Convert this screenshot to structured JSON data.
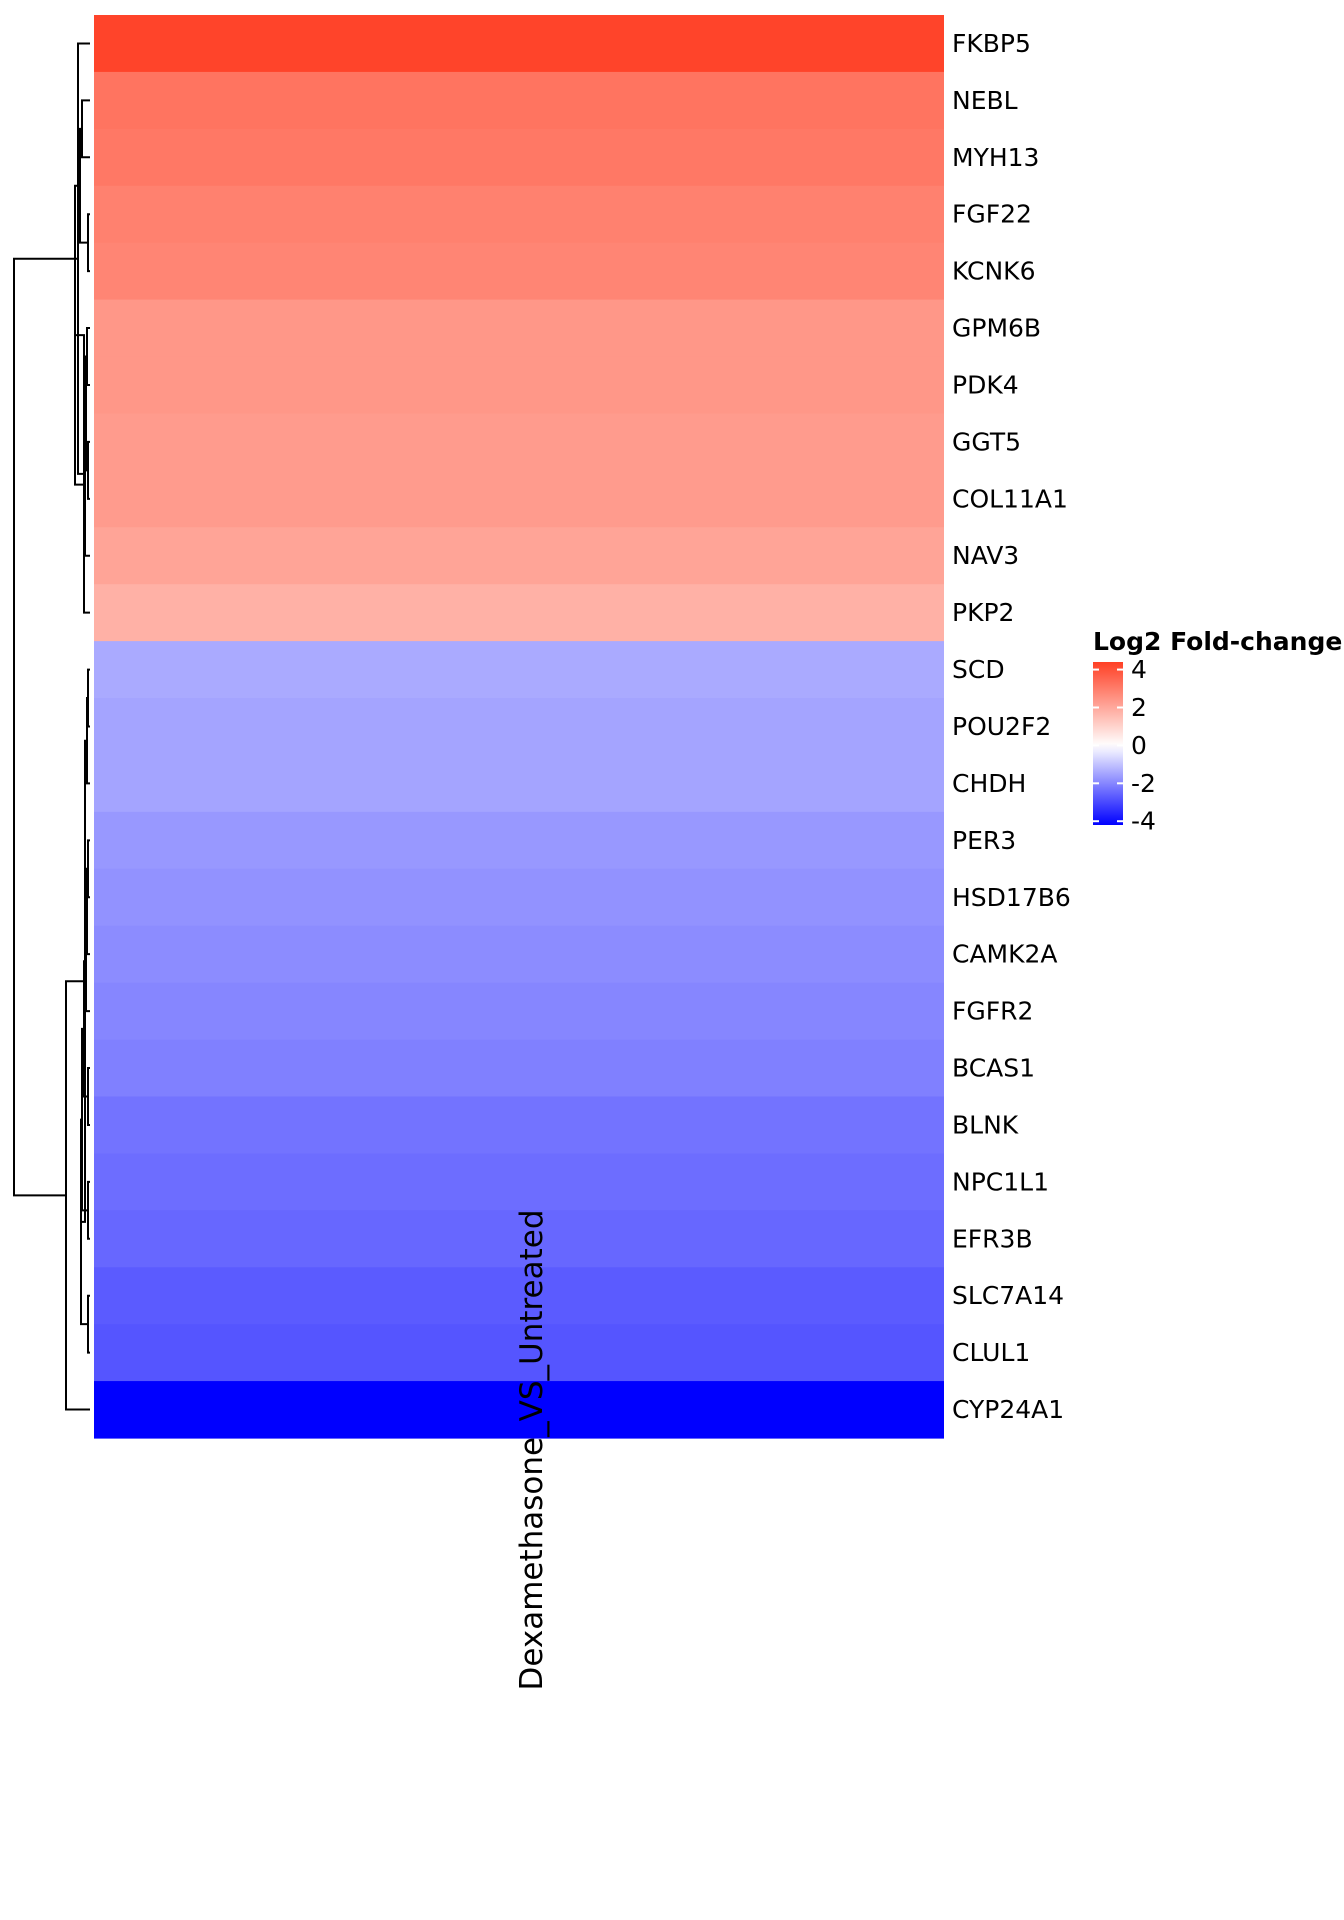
{
  "chart_data": {
    "type": "heatmap",
    "title": "",
    "columns": [
      "Dexamethasone_VS_Untreated"
    ],
    "rows": [
      "FKBP5",
      "NEBL",
      "MYH13",
      "FGF22",
      "KCNK6",
      "GPM6B",
      "PDK4",
      "GGT5",
      "COL11A1",
      "NAV3",
      "PKP2",
      "SCD",
      "POU2F2",
      "CHDH",
      "PER3",
      "HSD17B6",
      "CAMK2A",
      "FGFR2",
      "BCAS1",
      "BLNK",
      "NPC1L1",
      "EFR3B",
      "SLC7A14",
      "CLUL1",
      "CYP24A1"
    ],
    "values": [
      4.3,
      3.2,
      3.1,
      2.9,
      2.8,
      2.4,
      2.4,
      2.3,
      2.3,
      2.1,
      1.8,
      -1.4,
      -1.5,
      -1.5,
      -1.7,
      -1.8,
      -1.9,
      -2.0,
      -2.1,
      -2.3,
      -2.4,
      -2.5,
      -2.7,
      -2.8,
      -5.0
    ],
    "legend": {
      "title": "Log2 Fold-change",
      "ticks": [
        4,
        2,
        0,
        -2,
        -4
      ],
      "range": [
        -4.2,
        4.4
      ],
      "colors": {
        "low": "#0000ff",
        "mid": "#ffffff",
        "high": "#ff4025"
      }
    },
    "row_dendrogram": true
  }
}
